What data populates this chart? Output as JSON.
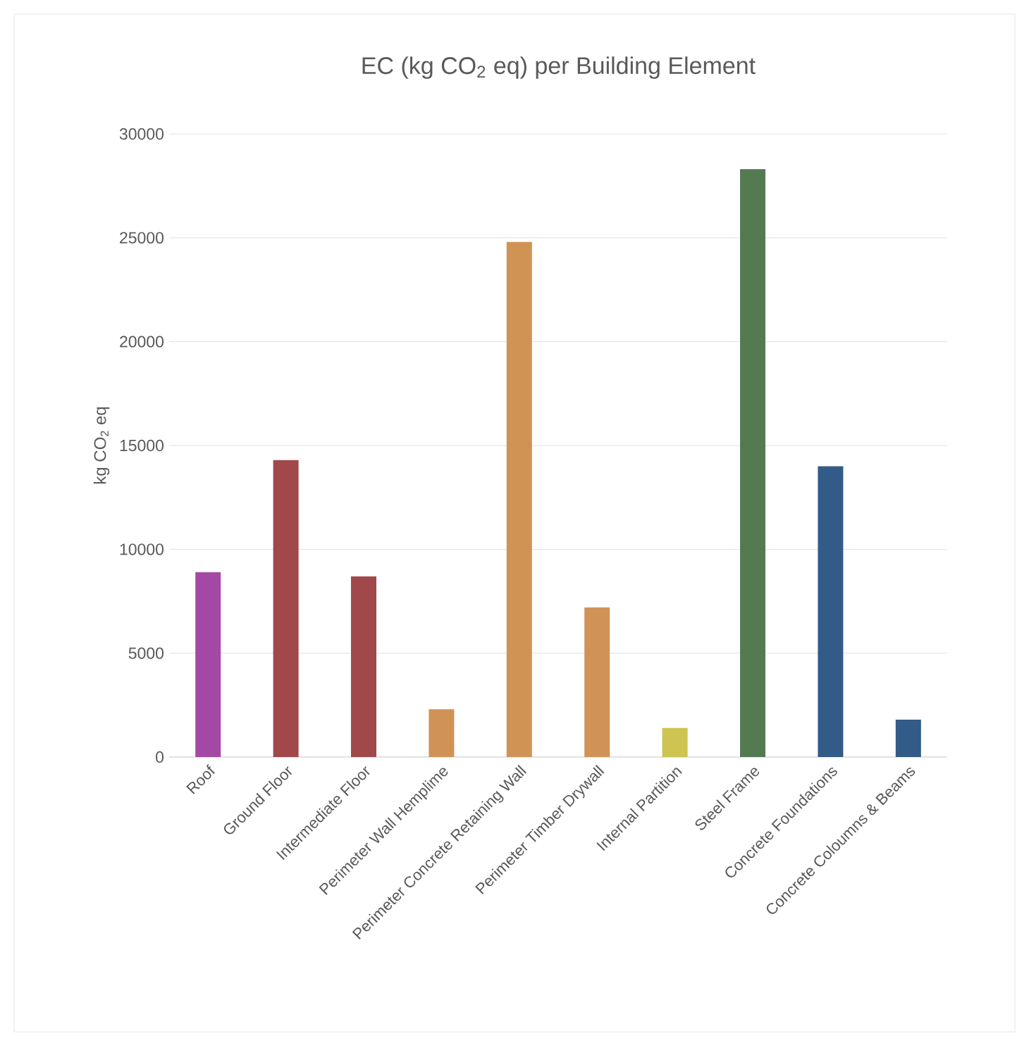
{
  "chart_data": {
    "type": "bar",
    "title": "EC (kg CO$_{2}$ eq) per Building Element",
    "ylabel": "kg CO$_{2}$ eq",
    "categories": [
      "Roof",
      "Ground Floor",
      "Intermediate Floor",
      "Perimeter Wall Hemplime",
      "Perimeter Concrete Retaining Wall",
      "Perimeter Timber Drywall",
      "Internal Partition",
      "Steel Frame",
      "Concrete Foundations",
      "Concrete Coloumns & Beams"
    ],
    "values": [
      8900,
      14300,
      8700,
      2300,
      24800,
      7200,
      1400,
      28300,
      14000,
      1800
    ],
    "colors": [
      "#a349a4",
      "#a0484a",
      "#a0484a",
      "#d09355",
      "#d09355",
      "#d09355",
      "#cdc451",
      "#557a52",
      "#335b88",
      "#335b88"
    ],
    "ylim": [
      0,
      30000
    ],
    "yticks": [
      0,
      5000,
      10000,
      15000,
      20000,
      25000,
      30000
    ],
    "grid": "y"
  }
}
